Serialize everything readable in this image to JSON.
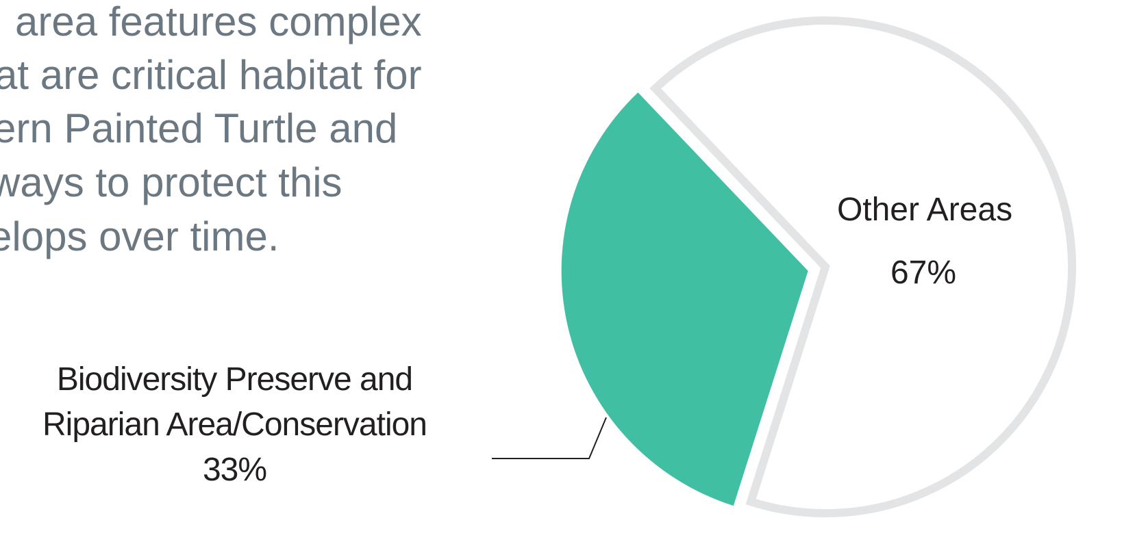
{
  "text": {
    "lines": [
      "area features complex",
      "at are critical habitat for",
      "ern Painted Turtle and",
      "ways to protect this",
      "elops over time."
    ]
  },
  "chart_data": {
    "type": "pie",
    "categories": [
      "Biodiversity Preserve and Riparian Area/Conservation",
      "Other Areas"
    ],
    "values": [
      33,
      67
    ],
    "value_labels": [
      "33%",
      "67%"
    ],
    "colors": [
      "#41bfa3",
      "#ffffff"
    ]
  }
}
